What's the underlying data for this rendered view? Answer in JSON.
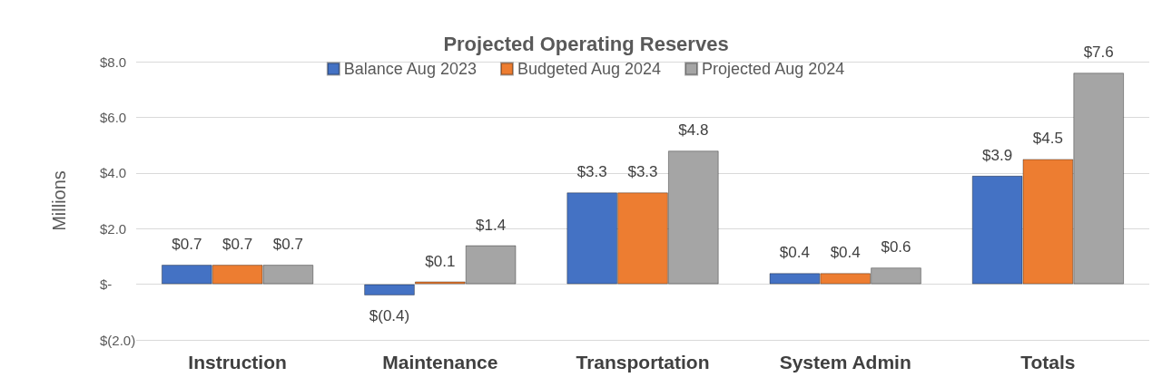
{
  "chart_data": {
    "type": "bar",
    "title": "Projected Operating Reserves",
    "ylabel": "Millions",
    "categories": [
      "Instruction",
      "Maintenance",
      "Transportation",
      "System Admin",
      "Totals"
    ],
    "series": [
      {
        "name": "Balance Aug 2023",
        "color": "#4472c4",
        "values": [
          0.7,
          -0.4,
          3.3,
          0.4,
          3.9
        ],
        "value_labels": [
          "$0.7",
          "$(0.4)",
          "$3.3",
          "$0.4",
          "$3.9"
        ]
      },
      {
        "name": "Budgeted Aug 2024",
        "color": "#ed7d31",
        "values": [
          0.7,
          0.1,
          3.3,
          0.4,
          4.5
        ],
        "value_labels": [
          "$0.7",
          "$0.1",
          "$3.3",
          "$0.4",
          "$4.5"
        ]
      },
      {
        "name": "Projected Aug 2024",
        "color": "#a5a5a5",
        "values": [
          0.7,
          1.4,
          4.8,
          0.6,
          7.6
        ],
        "value_labels": [
          "$0.7",
          "$1.4",
          "$4.8",
          "$0.6",
          "$7.6"
        ]
      }
    ],
    "ylim": [
      -2,
      8
    ],
    "yticks": [
      {
        "value": -2,
        "label": "$(2.0)"
      },
      {
        "value": 0,
        "label": "$-"
      },
      {
        "value": 2,
        "label": "$2.0"
      },
      {
        "value": 4,
        "label": "$4.0"
      },
      {
        "value": 6,
        "label": "$6.0"
      },
      {
        "value": 8,
        "label": "$8.0"
      }
    ],
    "grid": "y",
    "legend": "top"
  }
}
